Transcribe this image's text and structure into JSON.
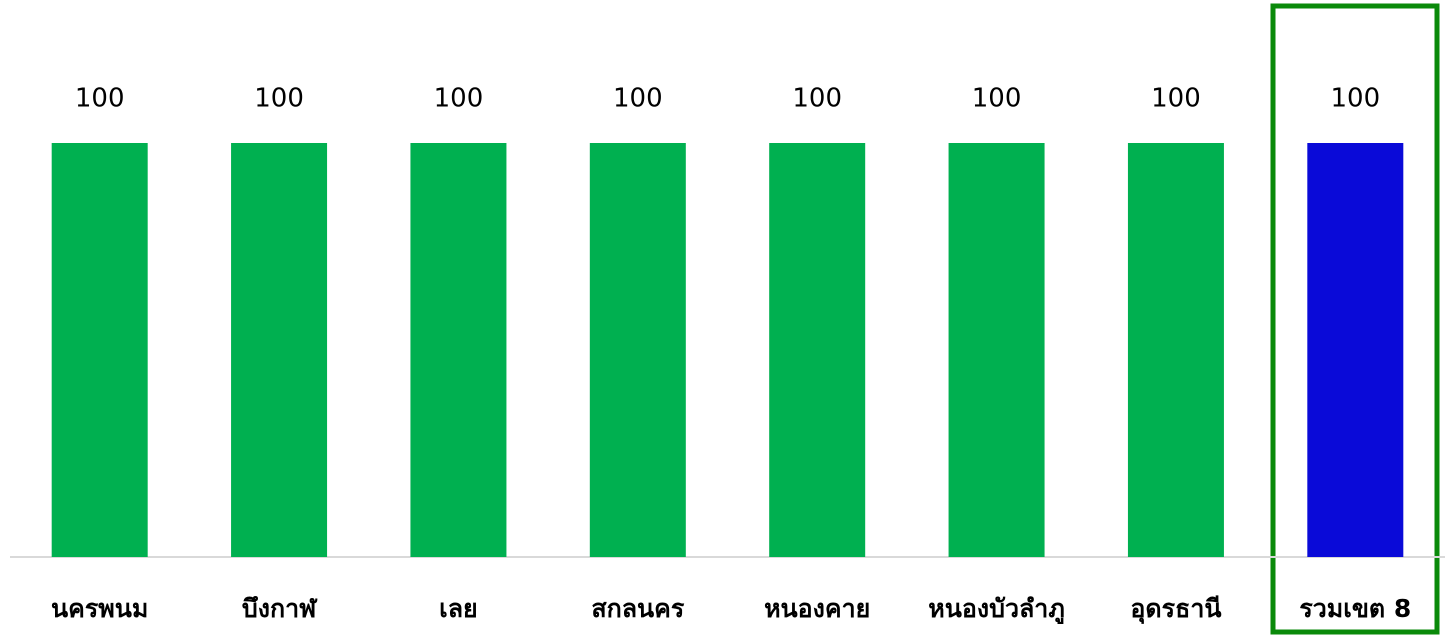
{
  "chart_data": {
    "type": "bar",
    "categories": [
      "นครพนม",
      "บึงกาฬ",
      "เลย",
      "สกลนคร",
      "หนองคาย",
      "หนองบัวลำภู",
      "อุดรธานี",
      "รวมเขต 8"
    ],
    "values": [
      100,
      100,
      100,
      100,
      100,
      100,
      100,
      100
    ],
    "colors": [
      "#00b050",
      "#00b050",
      "#00b050",
      "#00b050",
      "#00b050",
      "#00b050",
      "#00b050",
      "#0a0ad8"
    ],
    "ylim": [
      0,
      100
    ]
  }
}
